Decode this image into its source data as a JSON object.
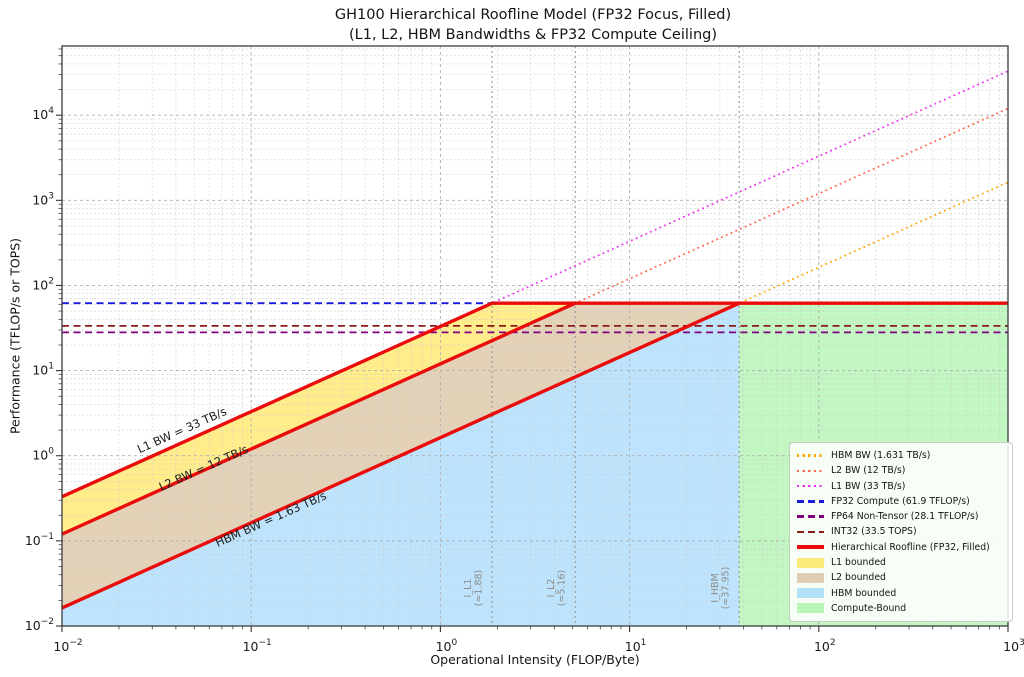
{
  "chart_data": {
    "type": "line",
    "title": "GH100 Hierarchical Roofline Model (FP32 Focus, Filled)",
    "subtitle": "(L1, L2, HBM Bandwidths & FP32 Compute Ceiling)",
    "xlabel": "Operational Intensity (FLOP/Byte)",
    "ylabel": "Performance (TFLOP/s or TOPS)",
    "x_scale": "log",
    "y_scale": "log",
    "xlim": [
      0.01,
      1000
    ],
    "ylim": [
      0.01,
      65000
    ],
    "x_tick_exponents": [
      -2,
      -1,
      0,
      1,
      2,
      3
    ],
    "y_tick_exponents": [
      -2,
      -1,
      0,
      1,
      2,
      3,
      4
    ],
    "grid": {
      "major": true,
      "minor": true,
      "style": "dotted"
    },
    "compute_ceiling_tflops": 61.9,
    "bandwidth_lines": [
      {
        "name": "HBM",
        "legend_label": "HBM BW (1.631 TB/s)",
        "tb_per_s": 1.631,
        "color": "#ffa500",
        "style": "dotted"
      },
      {
        "name": "L2",
        "legend_label": "L2 BW (12 TB/s)",
        "tb_per_s": 12,
        "color": "#ff6347",
        "style": "dotted"
      },
      {
        "name": "L1",
        "legend_label": "L1 BW (33 TB/s)",
        "tb_per_s": 33,
        "color": "#ee30ee",
        "style": "dotted"
      }
    ],
    "ceiling_lines": [
      {
        "name": "FP32",
        "legend_label": "FP32 Compute (61.9 TFLOP/s)",
        "tflops": 61.9,
        "color": "#1b1bdf",
        "style": "dashed"
      },
      {
        "name": "FP64",
        "legend_label": "FP64 Non-Tensor (28.1 TFLOP/s)",
        "tflops": 28.1,
        "color": "#800080",
        "style": "dashed"
      },
      {
        "name": "INT32",
        "legend_label": "INT32 (33.5 TOPS)",
        "tflops": 33.5,
        "color": "#8b1a1a",
        "style": "dashed"
      }
    ],
    "roofline": {
      "legend_label": "Hierarchical Roofline (FP32, Filled)",
      "color": "#ea0b0b",
      "width": 3.4
    },
    "ridge_points": [
      {
        "label": "I_L1",
        "value_text": "(≈1.88)",
        "x": 1.876
      },
      {
        "label": "I_L2",
        "value_text": "(≈5.16)",
        "x": 5.158
      },
      {
        "label": "I_HBM",
        "value_text": "(≈37.95)",
        "x": 37.95
      }
    ],
    "annotations": [
      {
        "text": "L1 BW = 33 TB/s",
        "x": 0.043,
        "y": 2.0,
        "rotation_deg": -24
      },
      {
        "text": "L2 BW = 12 TB/s",
        "x": 0.056,
        "y": 0.72,
        "rotation_deg": -24
      },
      {
        "text": "HBM BW = 1.63 TB/s",
        "x": 0.127,
        "y": 0.18,
        "rotation_deg": -24
      }
    ],
    "regions": [
      {
        "name": "l1-bounded",
        "legend_label": "L1 bounded",
        "fill": "rgba(255,215,0,0.45)"
      },
      {
        "name": "l2-bounded",
        "legend_label": "L2 bounded",
        "fill": "rgba(210,180,140,0.62)"
      },
      {
        "name": "hbm-bounded",
        "legend_label": "HBM bounded",
        "fill": "rgba(135,206,250,0.55)"
      },
      {
        "name": "compute-bound",
        "legend_label": "Compute-Bound",
        "fill": "rgba(144,238,144,0.55)"
      }
    ],
    "legend_position": "lower right"
  },
  "legend": {
    "items": [
      {
        "label": "HBM BW (1.631 TB/s)",
        "swatch": "dotted",
        "color": "#ffa500"
      },
      {
        "label": "L2 BW (12 TB/s)",
        "swatch": "dotted",
        "color": "#ff6347"
      },
      {
        "label": "L1 BW (33 TB/s)",
        "swatch": "dotted",
        "color": "#ee30ee"
      },
      {
        "label": "FP32 Compute (61.9 TFLOP/s)",
        "swatch": "dashed",
        "color": "#1b1bdf"
      },
      {
        "label": "FP64 Non-Tensor (28.1 TFLOP/s)",
        "swatch": "dashed",
        "color": "#800080"
      },
      {
        "label": "INT32 (33.5 TOPS)",
        "swatch": "dashed",
        "color": "#8b1a1a"
      },
      {
        "label": "Hierarchical Roofline (FP32, Filled)",
        "swatch": "solid",
        "color": "#ea0b0b"
      },
      {
        "label": "L1 bounded",
        "swatch": "patch",
        "color": "rgba(255,215,0,0.5)"
      },
      {
        "label": "L2 bounded",
        "swatch": "patch",
        "color": "rgba(210,180,140,0.65)"
      },
      {
        "label": "HBM bounded",
        "swatch": "patch",
        "color": "rgba(135,206,250,0.6)"
      },
      {
        "label": "Compute-Bound",
        "swatch": "patch",
        "color": "rgba(144,238,144,0.6)"
      }
    ]
  }
}
